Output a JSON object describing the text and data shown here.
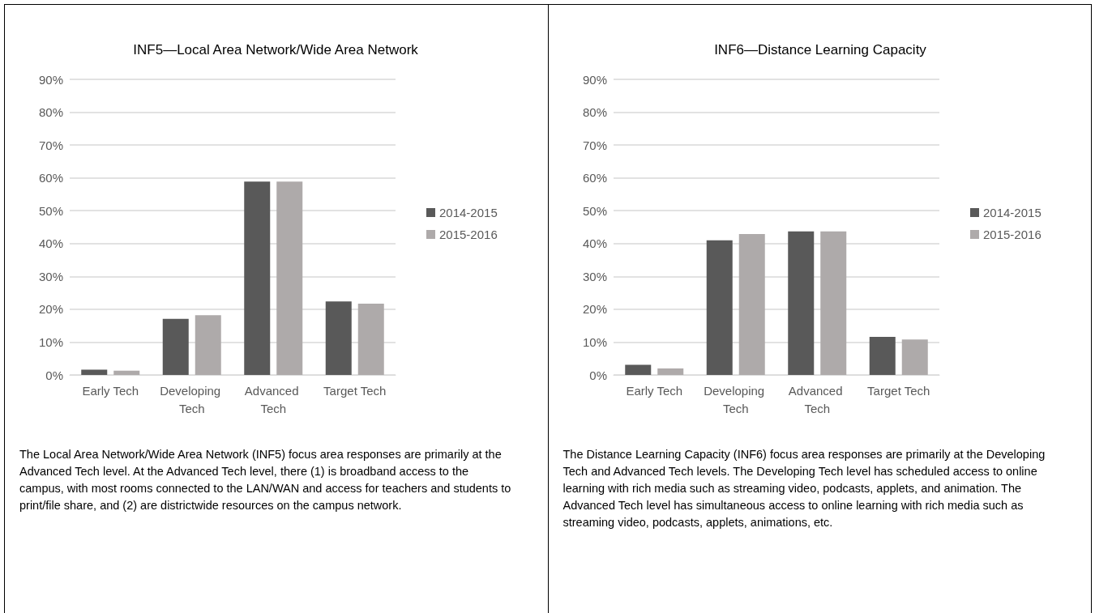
{
  "chart_data": [
    {
      "type": "bar",
      "title": "INF5—Local Area Network/Wide Area Network",
      "categories": [
        "Early Tech",
        "Developing Tech",
        "Advanced Tech",
        "Target Tech"
      ],
      "series": [
        {
          "name": "2014-2015",
          "color": "#595959",
          "values": [
            1.6,
            17.1,
            58.9,
            22.4
          ]
        },
        {
          "name": "2015-2016",
          "color": "#aeaaaa",
          "values": [
            1.3,
            18.2,
            58.9,
            21.7
          ]
        }
      ],
      "ylim": [
        0,
        90
      ],
      "yticks": [
        {
          "value": 0,
          "label": "0%"
        },
        {
          "value": 10,
          "label": "10%"
        },
        {
          "value": 20,
          "label": "20%"
        },
        {
          "value": 30,
          "label": "30%"
        },
        {
          "value": 40,
          "label": "40%"
        },
        {
          "value": 50,
          "label": "50%"
        },
        {
          "value": 60,
          "label": "60%"
        },
        {
          "value": 70,
          "label": "70%"
        },
        {
          "value": 80,
          "label": "80%"
        },
        {
          "value": 90,
          "label": "90%"
        }
      ],
      "grid": "y",
      "legend": "right",
      "annotations": [
        "The Local Area Network/Wide Area Network (INF5) focus area responses are primarily at the Advanced Tech level. At the Advanced Tech level, there (1) is broadband access to the campus, with most rooms connected to the LAN/WAN and access for teachers and students to print/file share, and (2) are districtwide resources on the campus network."
      ]
    },
    {
      "type": "bar",
      "title": "INF6—Distance Learning Capacity",
      "categories": [
        "Early Tech",
        "Developing Tech",
        "Advanced Tech",
        "Target Tech"
      ],
      "series": [
        {
          "name": "2014-2015",
          "color": "#595959",
          "values": [
            3.1,
            41.0,
            43.7,
            11.6
          ]
        },
        {
          "name": "2015-2016",
          "color": "#aeaaaa",
          "values": [
            2.0,
            42.9,
            43.7,
            10.8
          ]
        }
      ],
      "ylim": [
        0,
        90
      ],
      "yticks": [
        {
          "value": 0,
          "label": "0%"
        },
        {
          "value": 10,
          "label": "10%"
        },
        {
          "value": 20,
          "label": "20%"
        },
        {
          "value": 30,
          "label": "30%"
        },
        {
          "value": 40,
          "label": "40%"
        },
        {
          "value": 50,
          "label": "50%"
        },
        {
          "value": 60,
          "label": "60%"
        },
        {
          "value": 70,
          "label": "70%"
        },
        {
          "value": 80,
          "label": "80%"
        },
        {
          "value": 90,
          "label": "90%"
        }
      ],
      "grid": "y",
      "legend": "right",
      "annotations": [
        "The Distance Learning Capacity (INF6) focus area responses are primarily at the Developing Tech and Advanced Tech levels. The Developing Tech level has scheduled access to online learning with rich media such as streaming video, podcasts, applets, and animation. The Advanced Tech level has simultaneous access to online learning with rich media such as streaming video, podcasts, applets, animations, etc."
      ]
    }
  ]
}
